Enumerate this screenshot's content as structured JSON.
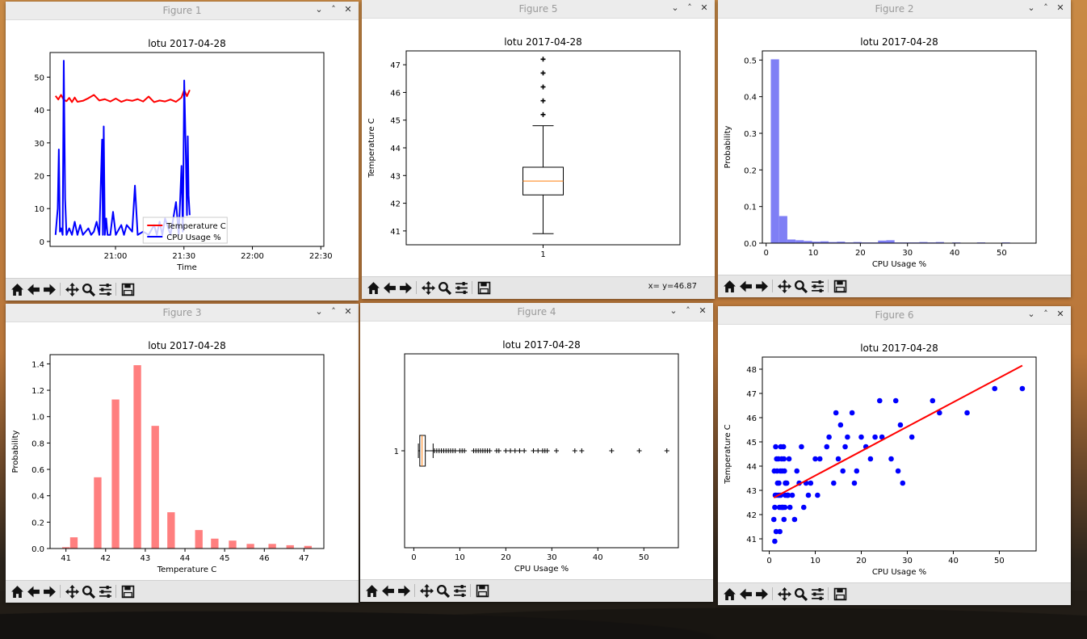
{
  "figures": [
    {
      "id": "w1",
      "title": "Figure 1",
      "coords": "",
      "chart_data": {
        "type": "line",
        "title": "lotu 2017-04-28",
        "xlabel": "Time",
        "ylabel": "",
        "xlim": [
          0,
          100
        ],
        "xticks": [
          {
            "v": 23.9,
            "label": "21:00"
          },
          {
            "v": 48.9,
            "label": "21:30"
          },
          {
            "v": 73.9,
            "label": "22:00"
          },
          {
            "v": 98.9,
            "label": "22:30"
          }
        ],
        "ylim": [
          -1.5,
          57.5
        ],
        "yticks": [
          0,
          10,
          20,
          30,
          40,
          50
        ],
        "legend": "lower-center",
        "series": [
          {
            "name": "Temperature C",
            "color": "#ff0000",
            "x": [
              2,
              3,
              4,
              5,
              6,
              7,
              8,
              9,
              10,
              12,
              14,
              16,
              18,
              20,
              22,
              24,
              26,
              28,
              30,
              32,
              34,
              36,
              38,
              40,
              42,
              44,
              46,
              48,
              49,
              50,
              51
            ],
            "y": [
              44.3,
              43.2,
              44.6,
              43.1,
              42.7,
              43.7,
              42.4,
              43.8,
              42.5,
              42.8,
              43.6,
              44.6,
              42.9,
              43.3,
              42.6,
              43.5,
              42.5,
              43.1,
              42.8,
              43.3,
              42.6,
              44.1,
              42.4,
              42.9,
              42.6,
              43.2,
              42.5,
              43.8,
              46.1,
              44.2,
              46.1
            ]
          },
          {
            "name": "CPU Usage %",
            "color": "#0000ff",
            "x": [
              2,
              2.8,
              3.2,
              3.6,
              4,
              4.6,
              5,
              5.5,
              6,
              7,
              8,
              9,
              10,
              11,
              12,
              14,
              15,
              16,
              17,
              18,
              19,
              19.3,
              19.6,
              20,
              20.5,
              21,
              22,
              23,
              24,
              26,
              27,
              28,
              30,
              31,
              32,
              34,
              36,
              38,
              39,
              40,
              41,
              42,
              44,
              45,
              46,
              47,
              48,
              48.5,
              49,
              49.5,
              50,
              50.3,
              50.6,
              51
            ],
            "y": [
              2,
              10,
              28,
              3,
              4,
              2,
              55,
              13,
              2,
              4,
              2,
              6,
              2,
              5,
              2,
              4,
              2,
              3,
              6,
              2,
              31,
              2,
              35,
              2,
              7,
              2,
              2,
              9,
              2,
              5,
              2,
              5,
              3,
              17,
              2,
              3,
              2,
              5,
              2,
              6,
              2,
              7,
              2,
              7,
              12,
              2,
              23,
              3,
              49,
              30,
              8,
              32,
              14,
              8
            ]
          }
        ]
      }
    },
    {
      "id": "w5",
      "title": "Figure 5",
      "coords": "x= y=46.87",
      "chart_data": {
        "type": "box",
        "title": "lotu 2017-04-28",
        "xlabel": "",
        "ylabel": "Temperature C",
        "xticks": [
          "1"
        ],
        "ylim": [
          40.5,
          47.5
        ],
        "yticks": [
          41,
          42,
          43,
          44,
          45,
          46,
          47
        ],
        "whisker_low": 40.9,
        "q1": 42.3,
        "median": 42.8,
        "q3": 43.3,
        "whisker_high": 44.8,
        "outliers": [
          45.2,
          45.7,
          46.2,
          46.7,
          47.2
        ]
      }
    },
    {
      "id": "w2",
      "title": "Figure 2",
      "coords": "",
      "chart_data": {
        "type": "bar",
        "title": "lotu 2017-04-28",
        "xlabel": "CPU Usage %",
        "ylabel": "Probability",
        "xlim": [
          -0.8,
          57.3
        ],
        "xticks": [
          0,
          10,
          20,
          30,
          40,
          50
        ],
        "ylim": [
          0,
          0.525
        ],
        "yticks": [
          0.0,
          0.1,
          0.2,
          0.3,
          0.4,
          0.5
        ],
        "color": "#7f7ff5",
        "bin_width": 1.75,
        "bin_start": 1.0,
        "values": [
          0.502,
          0.074,
          0.01,
          0.008,
          0.006,
          0.004,
          0.005,
          0.003,
          0.004,
          0.002,
          0.003,
          0.002,
          0.002,
          0.007,
          0.008,
          0.002,
          0.002,
          0.002,
          0.003,
          0.002,
          0.003,
          0.001,
          0.002,
          0.001,
          0.001,
          0.002,
          0.001,
          0.001,
          0.002,
          0.001,
          0.001,
          0.001
        ]
      }
    },
    {
      "id": "w3",
      "title": "Figure 3",
      "coords": "",
      "chart_data": {
        "type": "bar",
        "title": "lotu 2017-04-28",
        "xlabel": "Temperature C",
        "ylabel": "Probability",
        "xlim": [
          40.6,
          47.5
        ],
        "xticks": [
          41,
          42,
          43,
          44,
          45,
          46,
          47
        ],
        "ylim": [
          0,
          1.47
        ],
        "yticks": [
          0.0,
          0.2,
          0.4,
          0.6,
          0.8,
          1.0,
          1.2,
          1.4
        ],
        "color": "#ff7f7f",
        "bar_width": 0.19,
        "x": [
          41.0,
          41.2,
          41.8,
          42.25,
          42.8,
          43.25,
          43.65,
          44.35,
          44.75,
          45.2,
          45.65,
          46.2,
          46.65,
          47.1
        ],
        "values": [
          0.01,
          0.085,
          0.54,
          1.13,
          1.39,
          0.93,
          0.275,
          0.14,
          0.075,
          0.06,
          0.035,
          0.035,
          0.025,
          0.02
        ]
      }
    },
    {
      "id": "w4",
      "title": "Figure 4",
      "coords": "",
      "chart_data": {
        "type": "box",
        "orientation": "horizontal",
        "title": "lotu 2017-04-28",
        "xlabel": "CPU Usage %",
        "ylabel": "",
        "yticks": [
          "1"
        ],
        "xlim": [
          -2,
          57.5
        ],
        "xticks": [
          0,
          10,
          20,
          30,
          40,
          50
        ],
        "whisker_low": 1.0,
        "q1": 1.3,
        "median": 1.8,
        "q3": 2.5,
        "whisker_high": 4.2,
        "outliers": [
          4.5,
          5,
          5.5,
          6,
          6.5,
          7,
          7.5,
          8,
          8.5,
          9,
          10,
          10.5,
          11,
          13,
          13.5,
          14,
          14.5,
          15,
          15.5,
          16,
          16.5,
          18,
          18.5,
          20,
          21,
          22,
          23,
          24,
          26,
          27,
          28,
          28.5,
          29,
          31,
          35,
          36.5,
          43,
          49,
          55
        ]
      }
    },
    {
      "id": "w6",
      "title": "Figure 6",
      "coords": "",
      "chart_data": {
        "type": "scatter",
        "title": "lotu 2017-04-28",
        "xlabel": "CPU Usage %",
        "ylabel": "Temperature C",
        "xlim": [
          -1.5,
          58
        ],
        "xticks": [
          0,
          10,
          20,
          30,
          40,
          50
        ],
        "ylim": [
          40.5,
          48.5
        ],
        "yticks": [
          41,
          42,
          43,
          44,
          45,
          46,
          47,
          48
        ],
        "color": "#0000ff",
        "fit_color": "#ff0000",
        "fit_line": [
          [
            1,
            42.7
          ],
          [
            55,
            48.15
          ]
        ],
        "x": [
          1,
          1.2,
          1.5,
          1.8,
          2,
          2.2,
          2.5,
          2.8,
          3,
          3.2,
          3.5,
          3.8,
          4,
          4.5,
          1.1,
          1.6,
          2.1,
          2.6,
          3.1,
          3.6,
          4.1,
          1.3,
          1.7,
          2.3,
          2.9,
          3.3,
          3.9,
          4.3,
          1.4,
          1.9,
          2.4,
          2.7,
          3.4,
          5,
          5.5,
          6,
          6.5,
          7,
          7.5,
          8,
          8.5,
          9,
          10,
          10.5,
          11,
          12.5,
          13,
          14,
          14.5,
          15,
          15.5,
          16,
          16.5,
          17,
          18,
          18.5,
          19,
          20,
          21,
          22,
          23,
          24,
          24.5,
          26.5,
          27.5,
          28,
          28.5,
          29,
          31,
          35.5,
          37,
          43,
          49,
          55,
          1.5,
          2.5,
          3.5,
          1.2,
          2.2,
          3.2
        ],
        "y": [
          41.8,
          42.3,
          42.8,
          43.3,
          44.3,
          42.3,
          42.8,
          43.8,
          42.3,
          41.8,
          42.8,
          43.3,
          42.8,
          42.3,
          43.8,
          44.3,
          43.3,
          42.3,
          44.8,
          43.3,
          42.8,
          42.8,
          43.8,
          41.3,
          42.3,
          43.8,
          42.8,
          44.3,
          44.8,
          42.8,
          43.8,
          44.3,
          42.3,
          42.8,
          41.8,
          43.8,
          43.3,
          44.8,
          42.3,
          43.3,
          42.8,
          43.3,
          44.3,
          42.8,
          44.3,
          44.8,
          45.2,
          43.3,
          46.2,
          44.3,
          45.7,
          43.8,
          44.8,
          45.2,
          46.2,
          43.3,
          43.8,
          45.2,
          44.8,
          44.3,
          45.2,
          46.7,
          45.2,
          44.3,
          46.7,
          43.8,
          45.7,
          43.3,
          45.2,
          46.7,
          46.2,
          46.2,
          47.2,
          47.2,
          41.3,
          44.8,
          43.3,
          40.9,
          42.8,
          44.3
        ]
      }
    }
  ]
}
